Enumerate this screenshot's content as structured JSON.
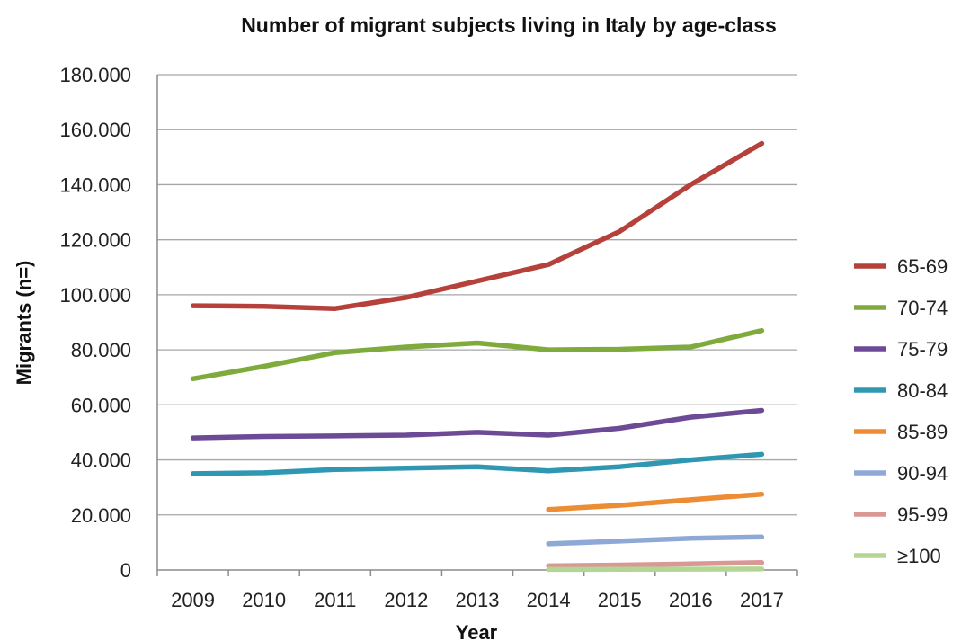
{
  "chart_data": {
    "type": "line",
    "title": "Number of migrant subjects living in Italy by age-class",
    "xlabel": "Year",
    "ylabel": "Migrants (n=)",
    "categories": [
      "2009",
      "2010",
      "2011",
      "2012",
      "2013",
      "2014",
      "2015",
      "2016",
      "2017"
    ],
    "ylim": [
      0,
      180000
    ],
    "yticks": [
      0,
      20000,
      40000,
      60000,
      80000,
      100000,
      120000,
      140000,
      160000,
      180000
    ],
    "ytick_labels": [
      "0",
      "20.000",
      "40.000",
      "60.000",
      "80.000",
      "100.000",
      "120.000",
      "140.000",
      "160.000",
      "180.000"
    ],
    "grid": true,
    "legend_position": "right",
    "series": [
      {
        "name": "65-69",
        "color": "#b5413a",
        "values": [
          96000,
          95800,
          95000,
          99000,
          105000,
          111000,
          123000,
          140000,
          155000
        ]
      },
      {
        "name": "70-74",
        "color": "#7fab3d",
        "values": [
          69500,
          74000,
          79000,
          81000,
          82500,
          80000,
          80200,
          81000,
          87000
        ]
      },
      {
        "name": "75-79",
        "color": "#6c4a96",
        "values": [
          48000,
          48500,
          48700,
          49000,
          50000,
          49000,
          51500,
          55500,
          58000
        ]
      },
      {
        "name": "80-84",
        "color": "#2f97b1",
        "values": [
          35000,
          35300,
          36500,
          37000,
          37500,
          36000,
          37500,
          40000,
          42000
        ]
      },
      {
        "name": "85-89",
        "color": "#ec8c33",
        "values": [
          null,
          null,
          null,
          null,
          null,
          22000,
          23500,
          25500,
          27500
        ]
      },
      {
        "name": "90-94",
        "color": "#8fa9d6",
        "values": [
          null,
          null,
          null,
          null,
          null,
          9500,
          10500,
          11500,
          12000
        ]
      },
      {
        "name": "95-99",
        "color": "#d99796",
        "values": [
          null,
          null,
          null,
          null,
          null,
          1500,
          1800,
          2200,
          2700
        ]
      },
      {
        "name": "≥100",
        "color": "#b4d695",
        "values": [
          null,
          null,
          null,
          null,
          null,
          200,
          250,
          300,
          350
        ]
      }
    ]
  }
}
